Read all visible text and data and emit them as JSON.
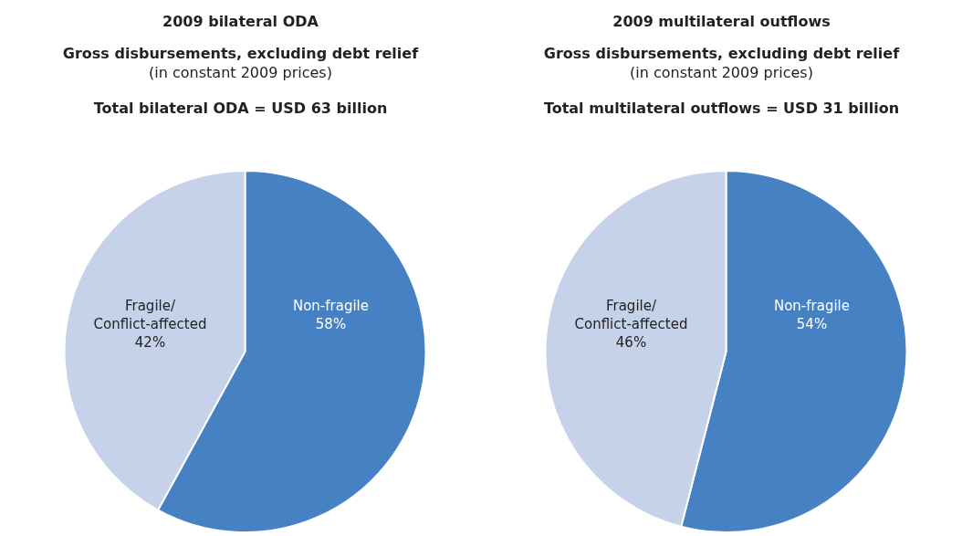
{
  "chart_data": [
    {
      "type": "pie",
      "title": "2009 bilateral ODA",
      "subtitle": "Gross disbursements, excluding debt relief",
      "annotations": [
        "(in constant 2009 prices)",
        "Total bilateral ODA = USD 63 billion"
      ],
      "categories": [
        "Non-fragile",
        "Fragile/ Conflict-affected"
      ],
      "values": [
        58,
        42
      ],
      "value_labels": [
        "58%",
        "42%"
      ],
      "colors": [
        "#4682c3",
        "#c5d2ea"
      ]
    },
    {
      "type": "pie",
      "title": "2009 multilateral outflows",
      "subtitle": "Gross disbursements, excluding debt relief",
      "annotations": [
        "(in constant 2009 prices)",
        "Total multilateral outflows = USD 31 billion"
      ],
      "categories": [
        "Non-fragile",
        "Fragile/ Conflict-affected"
      ],
      "values": [
        54,
        46
      ],
      "value_labels": [
        "54%",
        "46%"
      ],
      "colors": [
        "#4682c3",
        "#c5d2ea"
      ]
    }
  ]
}
